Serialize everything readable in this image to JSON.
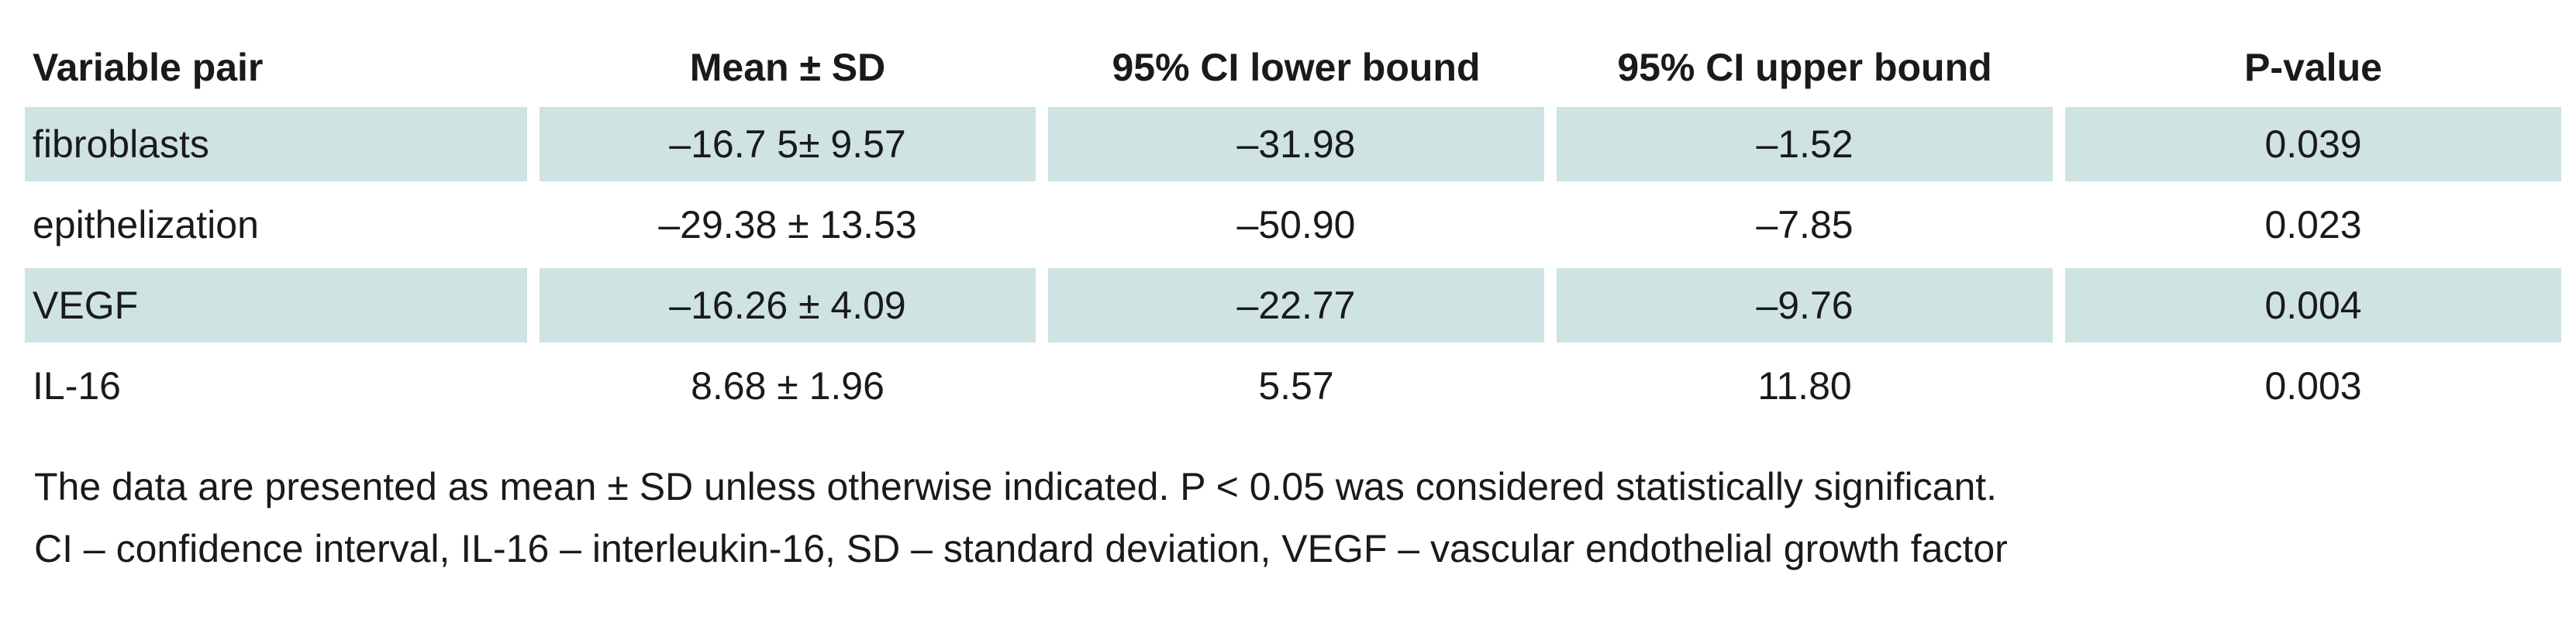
{
  "table": {
    "headers": [
      "Variable pair",
      "Mean ± SD",
      "95% CI lower bound",
      "95% CI upper bound",
      "P-value"
    ],
    "rows": [
      [
        "fibroblasts",
        "–16.7 5± 9.57",
        "–31.98",
        "–1.52",
        "0.039"
      ],
      [
        "epithelization",
        "–29.38 ± 13.53",
        "–50.90",
        "–7.85",
        "0.023"
      ],
      [
        "VEGF",
        "–16.26 ± 4.09",
        "–22.77",
        "–9.76",
        "0.004"
      ],
      [
        "IL-16",
        "8.68 ± 1.96",
        "5.57",
        "11.80",
        "0.003"
      ]
    ],
    "shading": "#cfe3e3"
  },
  "notes": {
    "line1": "The data are presented as mean ± SD unless otherwise indicated. P < 0.05 was considered statistically significant.",
    "line2": "CI – confidence interval, IL-16 – interleukin-16, SD – standard deviation, VEGF – vascular endothelial growth factor"
  }
}
